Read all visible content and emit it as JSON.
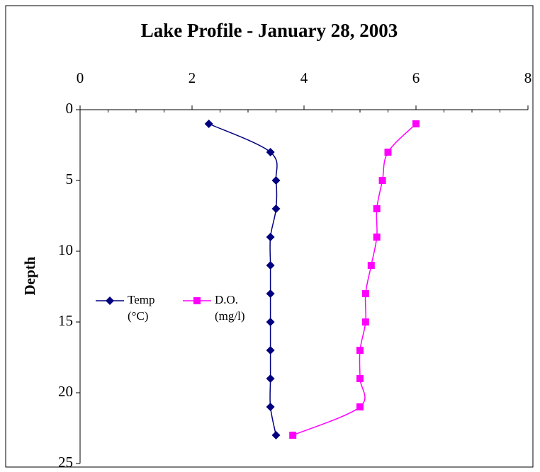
{
  "chart_data": {
    "type": "line",
    "title": "Lake Profile - January 28, 2003",
    "ylabel": "Depth",
    "y": [
      1,
      3,
      5,
      7,
      9,
      11,
      13,
      15,
      17,
      19,
      21,
      23
    ],
    "series": [
      {
        "name": "Temp (°C)",
        "color": "#000080",
        "marker": "diamond",
        "values": [
          2.3,
          3.4,
          3.5,
          3.5,
          3.4,
          3.4,
          3.4,
          3.4,
          3.4,
          3.4,
          3.4,
          3.5
        ]
      },
      {
        "name": "D.O. (mg/l)",
        "color": "#ff00ff",
        "marker": "square",
        "values": [
          6.0,
          5.5,
          5.4,
          5.3,
          5.3,
          5.2,
          5.1,
          5.1,
          5.0,
          5.0,
          5.0,
          3.8
        ]
      }
    ],
    "xlim": [
      0,
      8
    ],
    "xticks": [
      0,
      2,
      4,
      6,
      8
    ],
    "ylim": [
      0,
      25
    ],
    "yticks": [
      0,
      5,
      10,
      15,
      20,
      25
    ],
    "yinverted": true,
    "smooth": true
  }
}
